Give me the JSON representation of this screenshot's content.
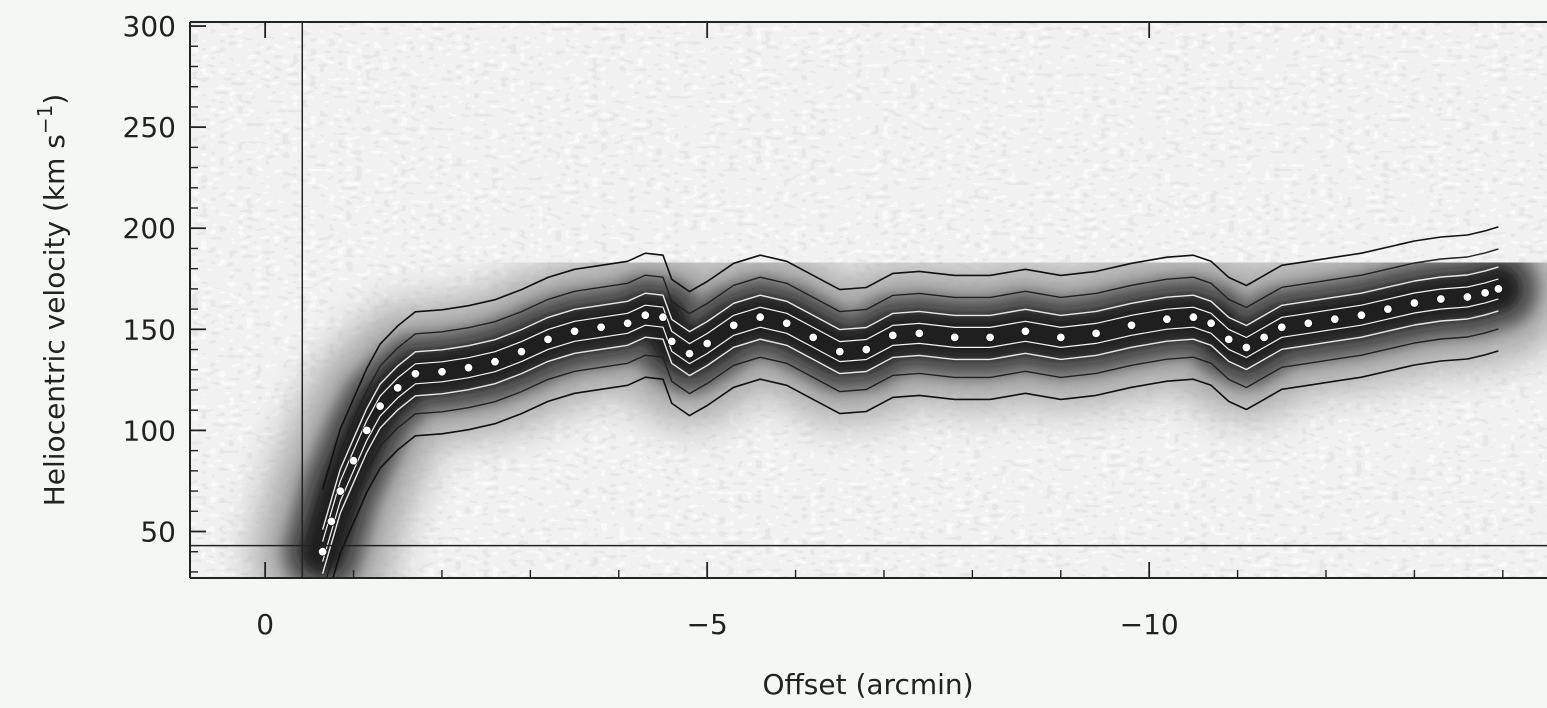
{
  "chart_data": {
    "type": "heatmap",
    "title": "",
    "xlabel": "Offset (arcmin)",
    "ylabel_main": "Heliocentric velocity (km s",
    "ylabel_sup": "−1",
    "ylabel_close": ")",
    "xlim": [
      0.85,
      -14.5
    ],
    "ylim": [
      27,
      302
    ],
    "x_ticks": [
      {
        "value": 0,
        "label": "0"
      },
      {
        "value": -5,
        "label": "−5"
      },
      {
        "value": -10,
        "label": "−10"
      }
    ],
    "y_ticks": [
      {
        "value": 50,
        "label": "50"
      },
      {
        "value": 100,
        "label": "100"
      },
      {
        "value": 150,
        "label": "150"
      },
      {
        "value": 200,
        "label": "200"
      },
      {
        "value": 250,
        "label": "250"
      },
      {
        "value": 300,
        "label": "300"
      }
    ],
    "reference_lines": {
      "vertical_x": -0.42,
      "horizontal_y": 43
    },
    "ridge": {
      "name": "",
      "x": [
        -0.65,
        -0.75,
        -0.85,
        -1.0,
        -1.15,
        -1.3,
        -1.5,
        -1.7,
        -2.0,
        -2.3,
        -2.6,
        -2.9,
        -3.2,
        -3.5,
        -3.8,
        -4.1,
        -4.3,
        -4.5,
        -4.6,
        -4.8,
        -5.0,
        -5.3,
        -5.6,
        -5.9,
        -6.2,
        -6.5,
        -6.8,
        -7.1,
        -7.4,
        -7.8,
        -8.2,
        -8.6,
        -9.0,
        -9.4,
        -9.8,
        -10.2,
        -10.5,
        -10.7,
        -10.9,
        -11.1,
        -11.3,
        -11.5,
        -11.8,
        -12.1,
        -12.4,
        -12.7,
        -13.0,
        -13.3,
        -13.6,
        -13.8,
        -13.95
      ],
      "y": [
        40,
        55,
        70,
        85,
        100,
        112,
        121,
        128,
        129,
        131,
        134,
        139,
        145,
        149,
        151,
        153,
        157,
        156,
        144,
        138,
        143,
        152,
        156,
        153,
        146,
        139,
        140,
        147,
        148,
        146,
        146,
        149,
        146,
        148,
        152,
        155,
        156,
        153,
        145,
        141,
        146,
        151,
        153,
        155,
        157,
        160,
        163,
        165,
        166,
        168,
        170
      ]
    },
    "colorscale": "grayscale",
    "grid": false,
    "legend": "none"
  }
}
